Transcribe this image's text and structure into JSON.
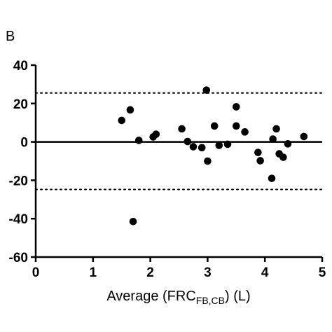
{
  "panel_label": "B",
  "chart_data": {
    "type": "scatter",
    "xlabel": {
      "main": "Average (FRC",
      "sub": "FB,CB",
      "tail": ") (L)"
    },
    "ylabel": "",
    "xlim": [
      0,
      5
    ],
    "ylim": [
      -60,
      40
    ],
    "x_ticks": [
      "0",
      "1",
      "2",
      "3",
      "4",
      "5"
    ],
    "y_ticks": [
      "40",
      "20",
      "0",
      "-20",
      "-40",
      "-60"
    ],
    "reference_lines": {
      "mean": 0,
      "upper_limit": 25.5,
      "lower_limit": -24.8
    },
    "point_color": "#000000",
    "points": [
      {
        "x": 1.5,
        "y": 11.2
      },
      {
        "x": 1.65,
        "y": 16.7
      },
      {
        "x": 1.7,
        "y": -41.5
      },
      {
        "x": 1.8,
        "y": 0.8
      },
      {
        "x": 2.05,
        "y": 2.6
      },
      {
        "x": 2.1,
        "y": 4.0
      },
      {
        "x": 2.55,
        "y": 6.8
      },
      {
        "x": 2.65,
        "y": 0.2
      },
      {
        "x": 2.75,
        "y": -2.5
      },
      {
        "x": 2.9,
        "y": -3.0
      },
      {
        "x": 2.98,
        "y": 27.0
      },
      {
        "x": 3.0,
        "y": -10.0
      },
      {
        "x": 3.12,
        "y": 8.3
      },
      {
        "x": 3.2,
        "y": -1.8
      },
      {
        "x": 3.35,
        "y": -1.2
      },
      {
        "x": 3.5,
        "y": 18.3
      },
      {
        "x": 3.5,
        "y": 8.3
      },
      {
        "x": 3.65,
        "y": 5.2
      },
      {
        "x": 3.88,
        "y": -5.5
      },
      {
        "x": 3.92,
        "y": -9.8
      },
      {
        "x": 4.12,
        "y": -19.0
      },
      {
        "x": 4.14,
        "y": 1.5
      },
      {
        "x": 4.2,
        "y": 6.8
      },
      {
        "x": 4.25,
        "y": -6.2
      },
      {
        "x": 4.32,
        "y": -8.0
      },
      {
        "x": 4.4,
        "y": -1.0
      },
      {
        "x": 4.68,
        "y": 2.8
      }
    ]
  }
}
